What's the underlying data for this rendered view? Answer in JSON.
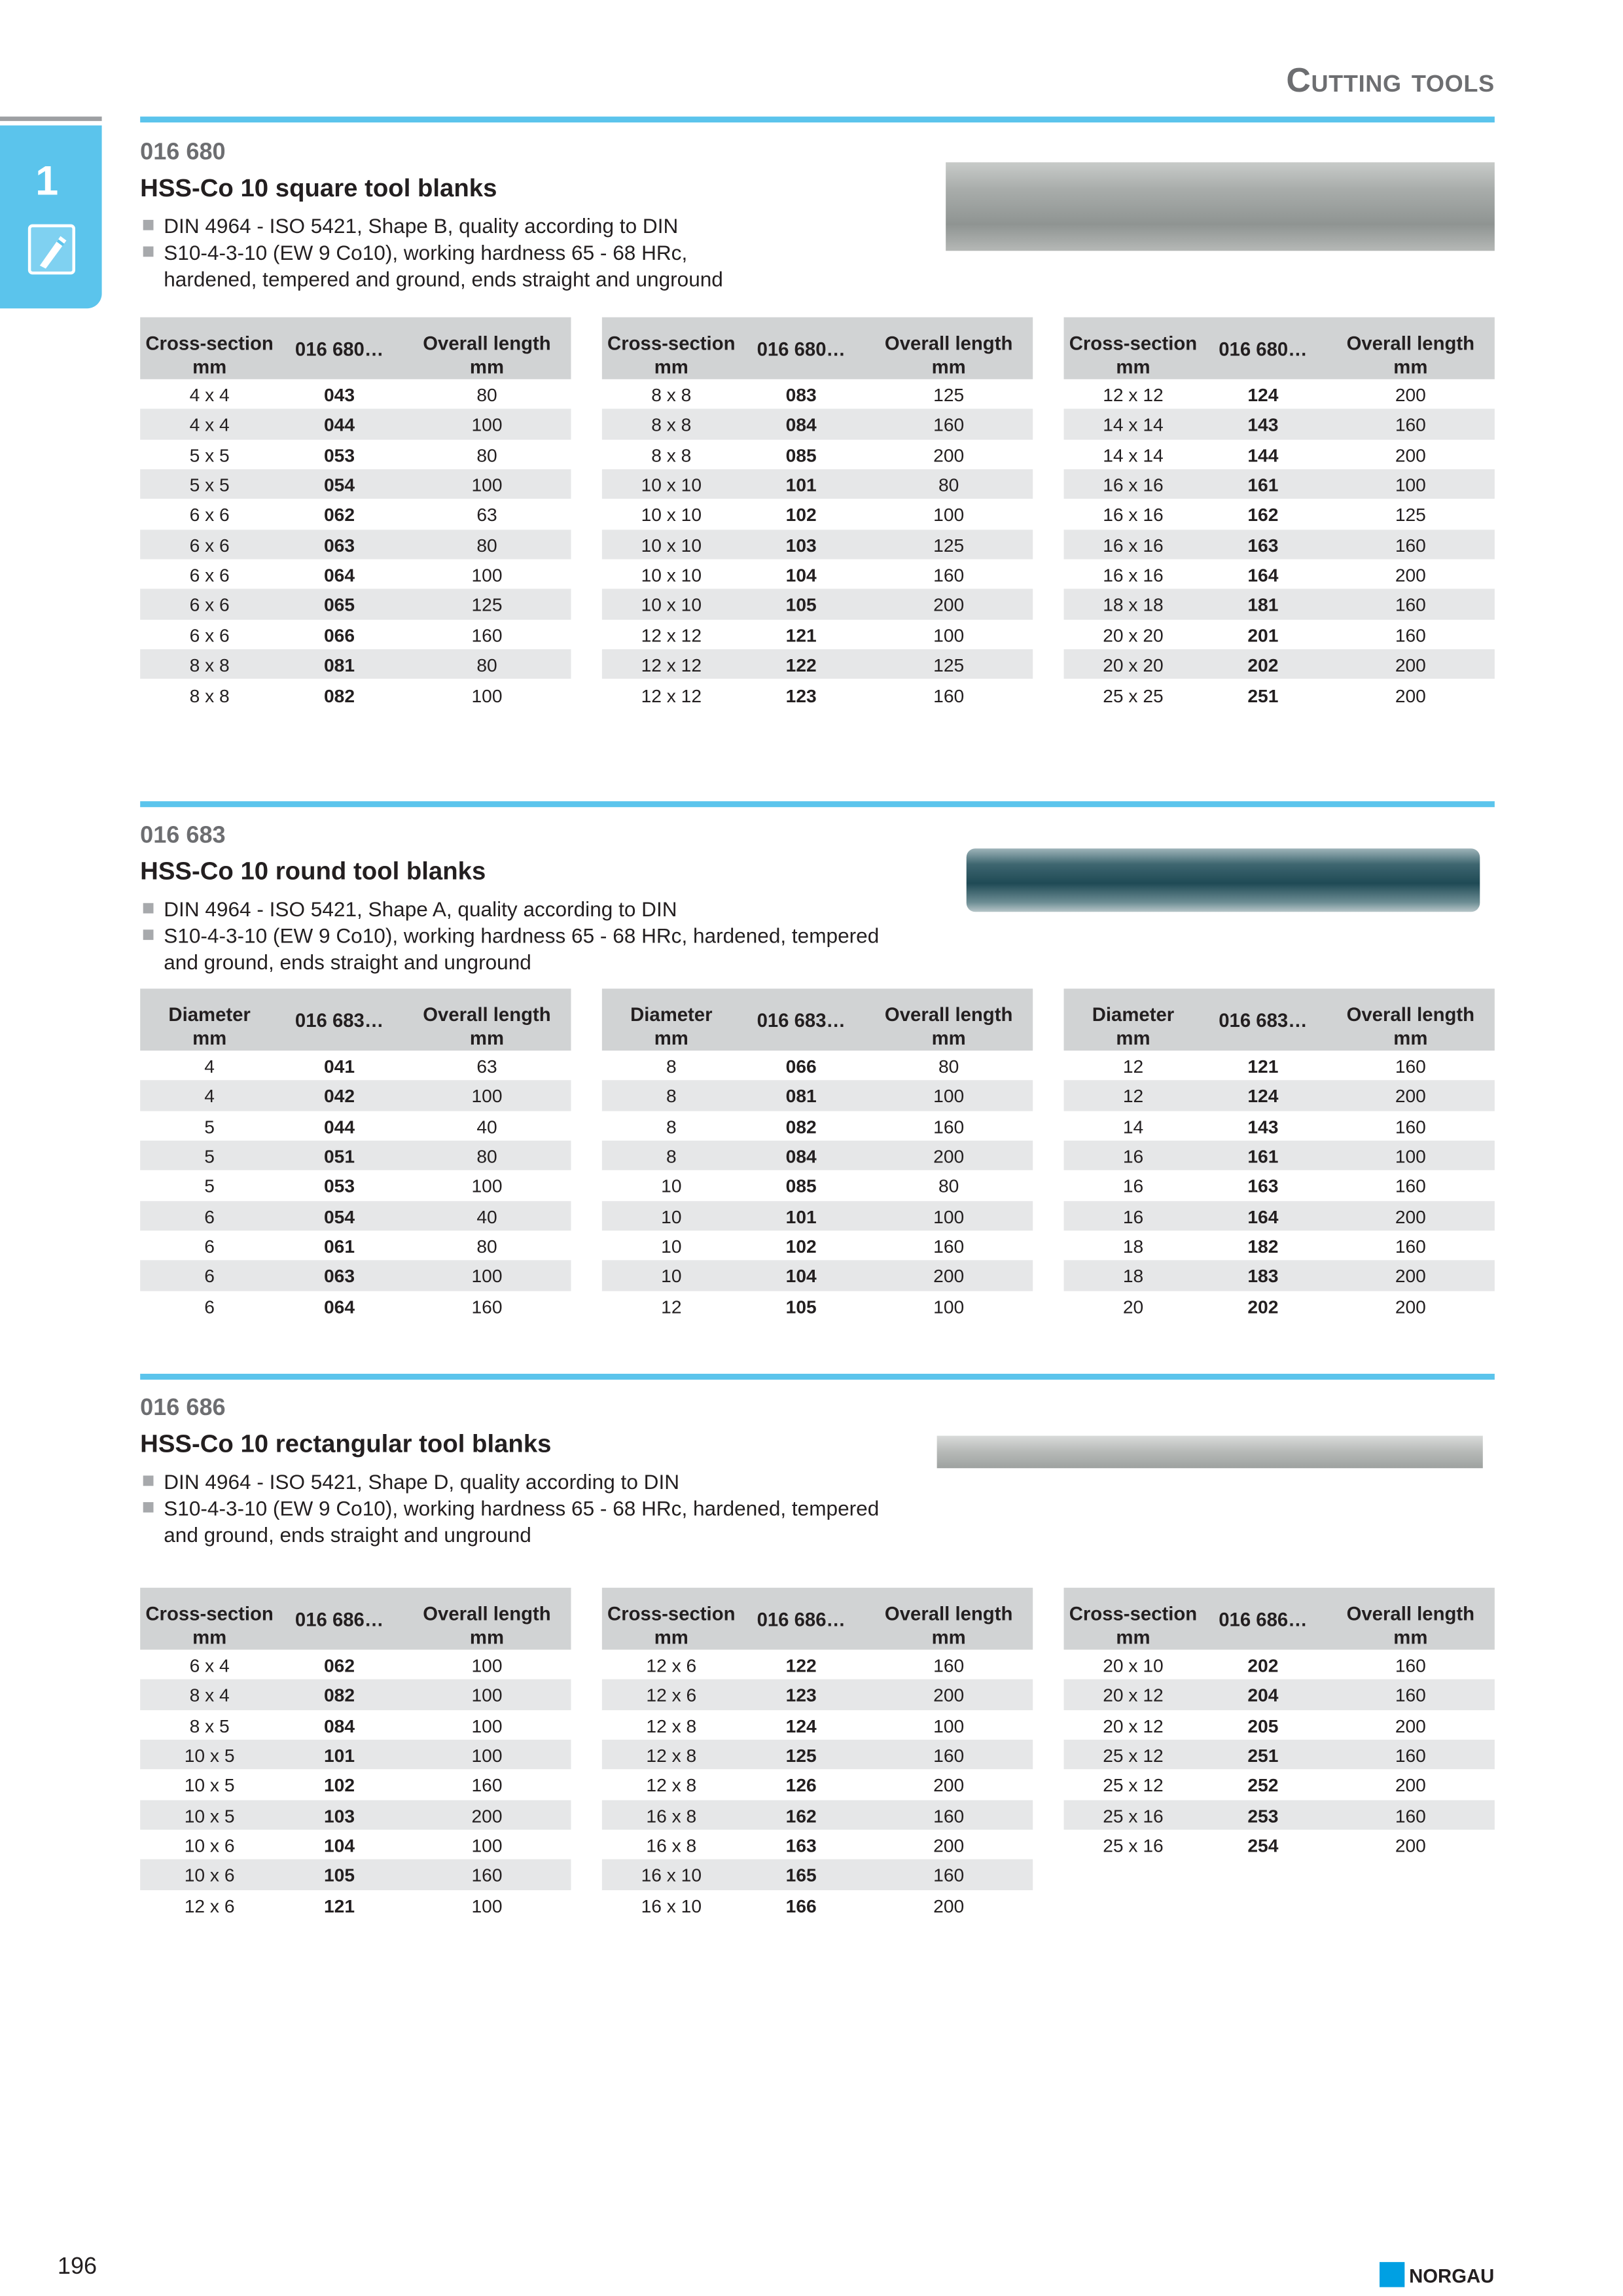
{
  "header": {
    "title": "Cutting tools",
    "chapter": "1"
  },
  "sections": [
    {
      "code": "016 680",
      "title": "HSS-Co 10 square tool blanks",
      "bullets": [
        [
          "DIN 4964 - ISO 5421, Shape B, quality according to DIN"
        ],
        [
          "S10-4-3-10 (EW 9 Co10), working hardness 65 - 68 HRc,",
          "hardened, tempered and ground, ends straight and unground"
        ]
      ],
      "tables": [
        {
          "columns": [
            [
              "Cross-section",
              "mm"
            ],
            [
              "016 680…"
            ],
            [
              "Overall length",
              "mm"
            ]
          ],
          "rows": [
            [
              "4 x 4",
              "043",
              "80"
            ],
            [
              "4 x 4",
              "044",
              "100"
            ],
            [
              "5 x 5",
              "053",
              "80"
            ],
            [
              "5 x 5",
              "054",
              "100"
            ],
            [
              "6 x 6",
              "062",
              "63"
            ],
            [
              "6 x 6",
              "063",
              "80"
            ],
            [
              "6 x 6",
              "064",
              "100"
            ],
            [
              "6 x 6",
              "065",
              "125"
            ],
            [
              "6 x 6",
              "066",
              "160"
            ],
            [
              "8 x 8",
              "081",
              "80"
            ],
            [
              "8 x 8",
              "082",
              "100"
            ]
          ]
        },
        {
          "columns": [
            [
              "Cross-section",
              "mm"
            ],
            [
              "016 680…"
            ],
            [
              "Overall length",
              "mm"
            ]
          ],
          "rows": [
            [
              "8 x 8",
              "083",
              "125"
            ],
            [
              "8 x 8",
              "084",
              "160"
            ],
            [
              "8 x 8",
              "085",
              "200"
            ],
            [
              "10 x 10",
              "101",
              "80"
            ],
            [
              "10 x 10",
              "102",
              "100"
            ],
            [
              "10 x 10",
              "103",
              "125"
            ],
            [
              "10 x 10",
              "104",
              "160"
            ],
            [
              "10 x 10",
              "105",
              "200"
            ],
            [
              "12 x 12",
              "121",
              "100"
            ],
            [
              "12 x 12",
              "122",
              "125"
            ],
            [
              "12 x 12",
              "123",
              "160"
            ]
          ]
        },
        {
          "columns": [
            [
              "Cross-section",
              "mm"
            ],
            [
              "016 680…"
            ],
            [
              "Overall length",
              "mm"
            ]
          ],
          "rows": [
            [
              "12 x 12",
              "124",
              "200"
            ],
            [
              "14 x 14",
              "143",
              "160"
            ],
            [
              "14 x 14",
              "144",
              "200"
            ],
            [
              "16 x 16",
              "161",
              "100"
            ],
            [
              "16 x 16",
              "162",
              "125"
            ],
            [
              "16 x 16",
              "163",
              "160"
            ],
            [
              "16 x 16",
              "164",
              "200"
            ],
            [
              "18 x 18",
              "181",
              "160"
            ],
            [
              "20 x 20",
              "201",
              "160"
            ],
            [
              "20 x 20",
              "202",
              "200"
            ],
            [
              "25 x 25",
              "251",
              "200"
            ]
          ]
        }
      ]
    },
    {
      "code": "016 683",
      "title": "HSS-Co 10 round tool blanks",
      "bullets": [
        [
          "DIN 4964 - ISO 5421, Shape A, quality according to DIN"
        ],
        [
          "S10-4-3-10 (EW 9 Co10), working hardness 65 - 68 HRc, hardened, tempered",
          "and ground, ends straight and unground"
        ]
      ],
      "tables": [
        {
          "columns": [
            [
              "Diameter",
              "mm"
            ],
            [
              "016 683…"
            ],
            [
              "Overall length",
              "mm"
            ]
          ],
          "rows": [
            [
              "4",
              "041",
              "63"
            ],
            [
              "4",
              "042",
              "100"
            ],
            [
              "5",
              "044",
              "40"
            ],
            [
              "5",
              "051",
              "80"
            ],
            [
              "5",
              "053",
              "100"
            ],
            [
              "6",
              "054",
              "40"
            ],
            [
              "6",
              "061",
              "80"
            ],
            [
              "6",
              "063",
              "100"
            ],
            [
              "6",
              "064",
              "160"
            ]
          ]
        },
        {
          "columns": [
            [
              "Diameter",
              "mm"
            ],
            [
              "016 683…"
            ],
            [
              "Overall length",
              "mm"
            ]
          ],
          "rows": [
            [
              "8",
              "066",
              "80"
            ],
            [
              "8",
              "081",
              "100"
            ],
            [
              "8",
              "082",
              "160"
            ],
            [
              "8",
              "084",
              "200"
            ],
            [
              "10",
              "085",
              "80"
            ],
            [
              "10",
              "101",
              "100"
            ],
            [
              "10",
              "102",
              "160"
            ],
            [
              "10",
              "104",
              "200"
            ],
            [
              "12",
              "105",
              "100"
            ]
          ]
        },
        {
          "columns": [
            [
              "Diameter",
              "mm"
            ],
            [
              "016 683…"
            ],
            [
              "Overall length",
              "mm"
            ]
          ],
          "rows": [
            [
              "12",
              "121",
              "160"
            ],
            [
              "12",
              "124",
              "200"
            ],
            [
              "14",
              "143",
              "160"
            ],
            [
              "16",
              "161",
              "100"
            ],
            [
              "16",
              "163",
              "160"
            ],
            [
              "16",
              "164",
              "200"
            ],
            [
              "18",
              "182",
              "160"
            ],
            [
              "18",
              "183",
              "200"
            ],
            [
              "20",
              "202",
              "200"
            ]
          ]
        }
      ]
    },
    {
      "code": "016 686",
      "title": "HSS-Co 10 rectangular tool blanks",
      "bullets": [
        [
          "DIN 4964 - ISO 5421, Shape D, quality according to DIN"
        ],
        [
          "S10-4-3-10 (EW 9 Co10), working hardness 65 - 68 HRc, hardened, tempered",
          "and ground, ends straight and unground"
        ]
      ],
      "tables": [
        {
          "columns": [
            [
              "Cross-section",
              "mm"
            ],
            [
              "016 686…"
            ],
            [
              "Overall length",
              "mm"
            ]
          ],
          "rows": [
            [
              "6 x 4",
              "062",
              "100"
            ],
            [
              "8 x 4",
              "082",
              "100"
            ],
            [
              "8 x 5",
              "084",
              "100"
            ],
            [
              "10 x 5",
              "101",
              "100"
            ],
            [
              "10 x 5",
              "102",
              "160"
            ],
            [
              "10 x 5",
              "103",
              "200"
            ],
            [
              "10 x 6",
              "104",
              "100"
            ],
            [
              "10 x 6",
              "105",
              "160"
            ],
            [
              "12 x 6",
              "121",
              "100"
            ]
          ]
        },
        {
          "columns": [
            [
              "Cross-section",
              "mm"
            ],
            [
              "016 686…"
            ],
            [
              "Overall length",
              "mm"
            ]
          ],
          "rows": [
            [
              "12 x 6",
              "122",
              "160"
            ],
            [
              "12 x 6",
              "123",
              "200"
            ],
            [
              "12 x 8",
              "124",
              "100"
            ],
            [
              "12 x 8",
              "125",
              "160"
            ],
            [
              "12 x 8",
              "126",
              "200"
            ],
            [
              "16 x 8",
              "162",
              "160"
            ],
            [
              "16 x 8",
              "163",
              "200"
            ],
            [
              "16 x 10",
              "165",
              "160"
            ],
            [
              "16 x 10",
              "166",
              "200"
            ]
          ]
        },
        {
          "columns": [
            [
              "Cross-section",
              "mm"
            ],
            [
              "016 686…"
            ],
            [
              "Overall length",
              "mm"
            ]
          ],
          "rows": [
            [
              "20 x 10",
              "202",
              "160"
            ],
            [
              "20 x 12",
              "204",
              "160"
            ],
            [
              "20 x 12",
              "205",
              "200"
            ],
            [
              "25 x 12",
              "251",
              "160"
            ],
            [
              "25 x 12",
              "252",
              "200"
            ],
            [
              "25 x 16",
              "253",
              "160"
            ],
            [
              "25 x 16",
              "254",
              "200"
            ]
          ]
        }
      ]
    }
  ],
  "footer": {
    "page": "196",
    "brand": "NORGAU"
  }
}
